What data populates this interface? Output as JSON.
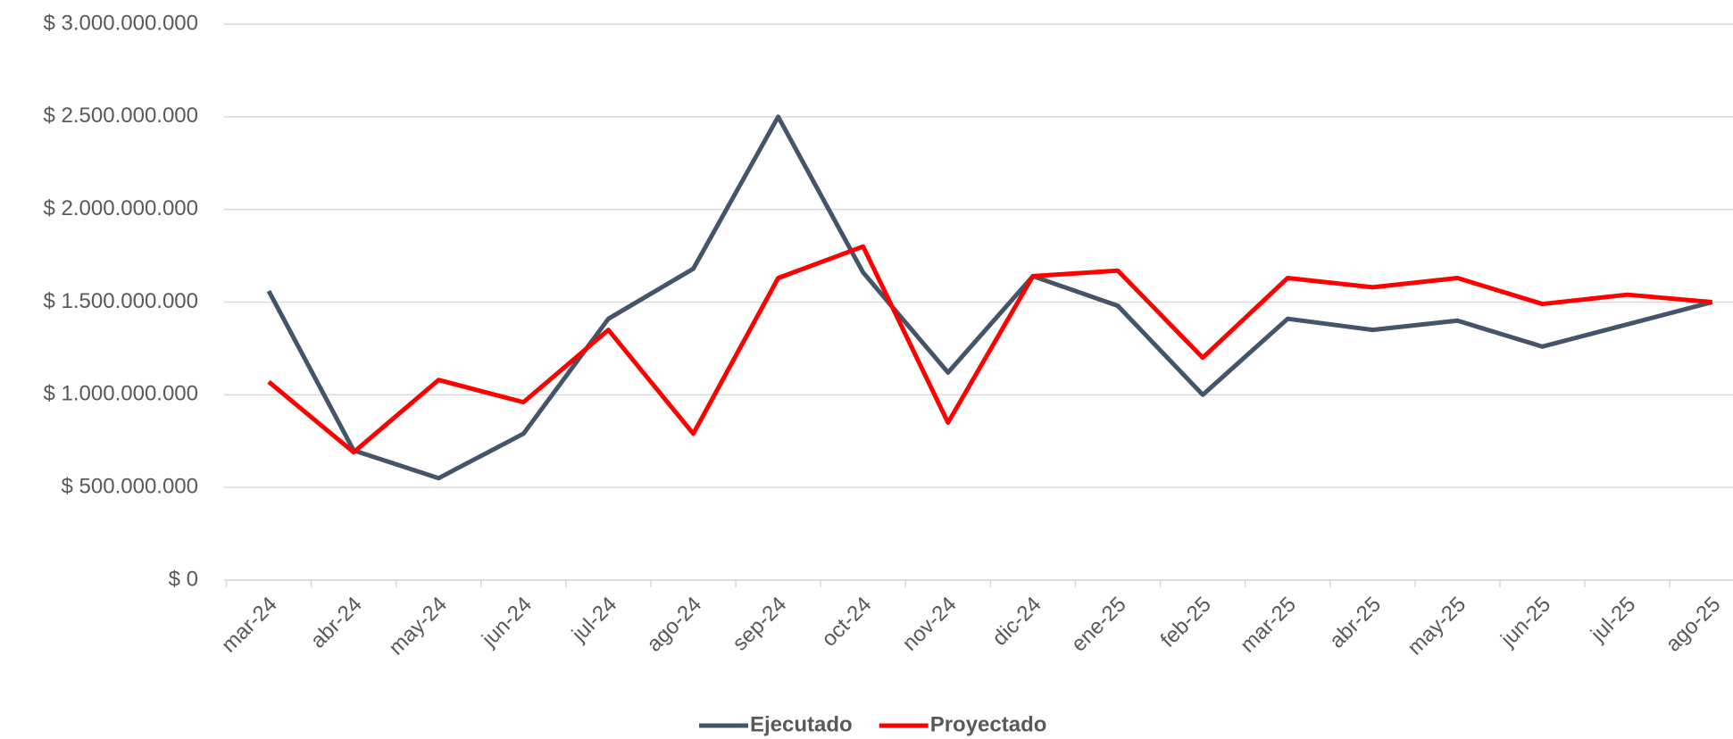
{
  "chart_data": {
    "type": "line",
    "categories": [
      "mar-24",
      "abr-24",
      "may-24",
      "jun-24",
      "jul-24",
      "ago-24",
      "sep-24",
      "oct-24",
      "nov-24",
      "dic-24",
      "ene-25",
      "feb-25",
      "mar-25",
      "abr-25",
      "may-25",
      "jun-25",
      "jul-25",
      "ago-25"
    ],
    "series": [
      {
        "name": "Ejecutado",
        "color": "#44546a",
        "values": [
          1560000000,
          700000000,
          550000000,
          790000000,
          1410000000,
          1680000000,
          2500000000,
          1660000000,
          1120000000,
          1640000000,
          1480000000,
          1000000000,
          1410000000,
          1350000000,
          1400000000,
          1260000000,
          1380000000,
          1500000000
        ]
      },
      {
        "name": "Proyectado",
        "color": "#ff0000",
        "values": [
          1070000000,
          690000000,
          1080000000,
          960000000,
          1350000000,
          790000000,
          1630000000,
          1800000000,
          850000000,
          1640000000,
          1670000000,
          1200000000,
          1630000000,
          1580000000,
          1630000000,
          1490000000,
          1540000000,
          1500000000
        ]
      }
    ],
    "ylim": [
      0,
      3000000000
    ],
    "yticks": [
      {
        "value": 0,
        "label": "$ 0"
      },
      {
        "value": 500000000,
        "label": "$ 500.000.000"
      },
      {
        "value": 1000000000,
        "label": "$ 1.000.000.000"
      },
      {
        "value": 1500000000,
        "label": "$ 1.500.000.000"
      },
      {
        "value": 2000000000,
        "label": "$ 2.000.000.000"
      },
      {
        "value": 2500000000,
        "label": "$ 2.500.000.000"
      },
      {
        "value": 3000000000,
        "label": "$ 3.000.000.000"
      }
    ],
    "grid": true,
    "legend": "bottom"
  }
}
